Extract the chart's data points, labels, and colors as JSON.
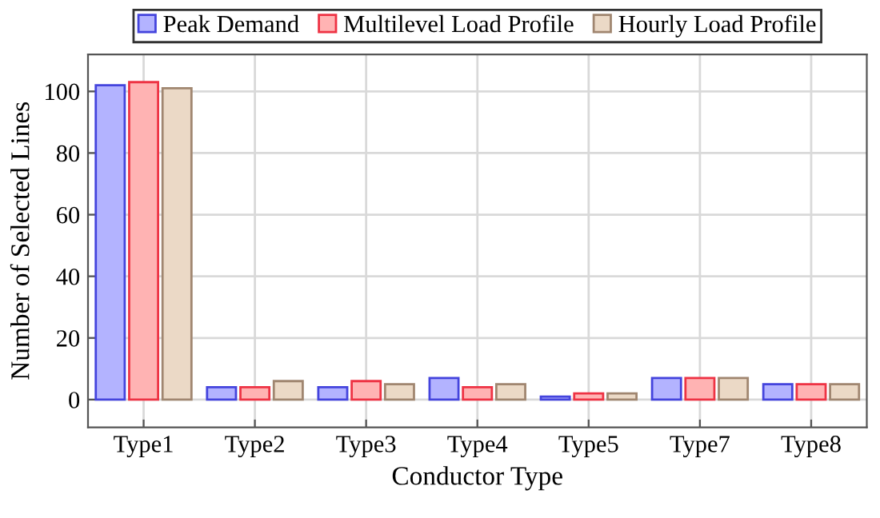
{
  "chart_data": {
    "type": "bar",
    "xlabel": "Conductor Type",
    "ylabel": "Number of Selected Lines",
    "categories": [
      "Type1",
      "Type2",
      "Type3",
      "Type4",
      "Type5",
      "Type7",
      "Type8"
    ],
    "series": [
      {
        "name": "Peak Demand",
        "color": "#b3b3ff",
        "values": [
          102,
          4,
          4,
          7,
          1,
          7,
          5
        ]
      },
      {
        "name": "Multilevel Load Profile",
        "color": "#ffb3b3",
        "values": [
          103,
          4,
          6,
          4,
          2,
          7,
          5
        ]
      },
      {
        "name": "Hourly Load Profile",
        "color": "#ebd9c6",
        "values": [
          101,
          6,
          5,
          5,
          2,
          7,
          5
        ]
      }
    ],
    "ylim": [
      -9,
      112
    ],
    "yticks": [
      0,
      20,
      40,
      60,
      80,
      100
    ],
    "grid": true,
    "legend": "top"
  }
}
